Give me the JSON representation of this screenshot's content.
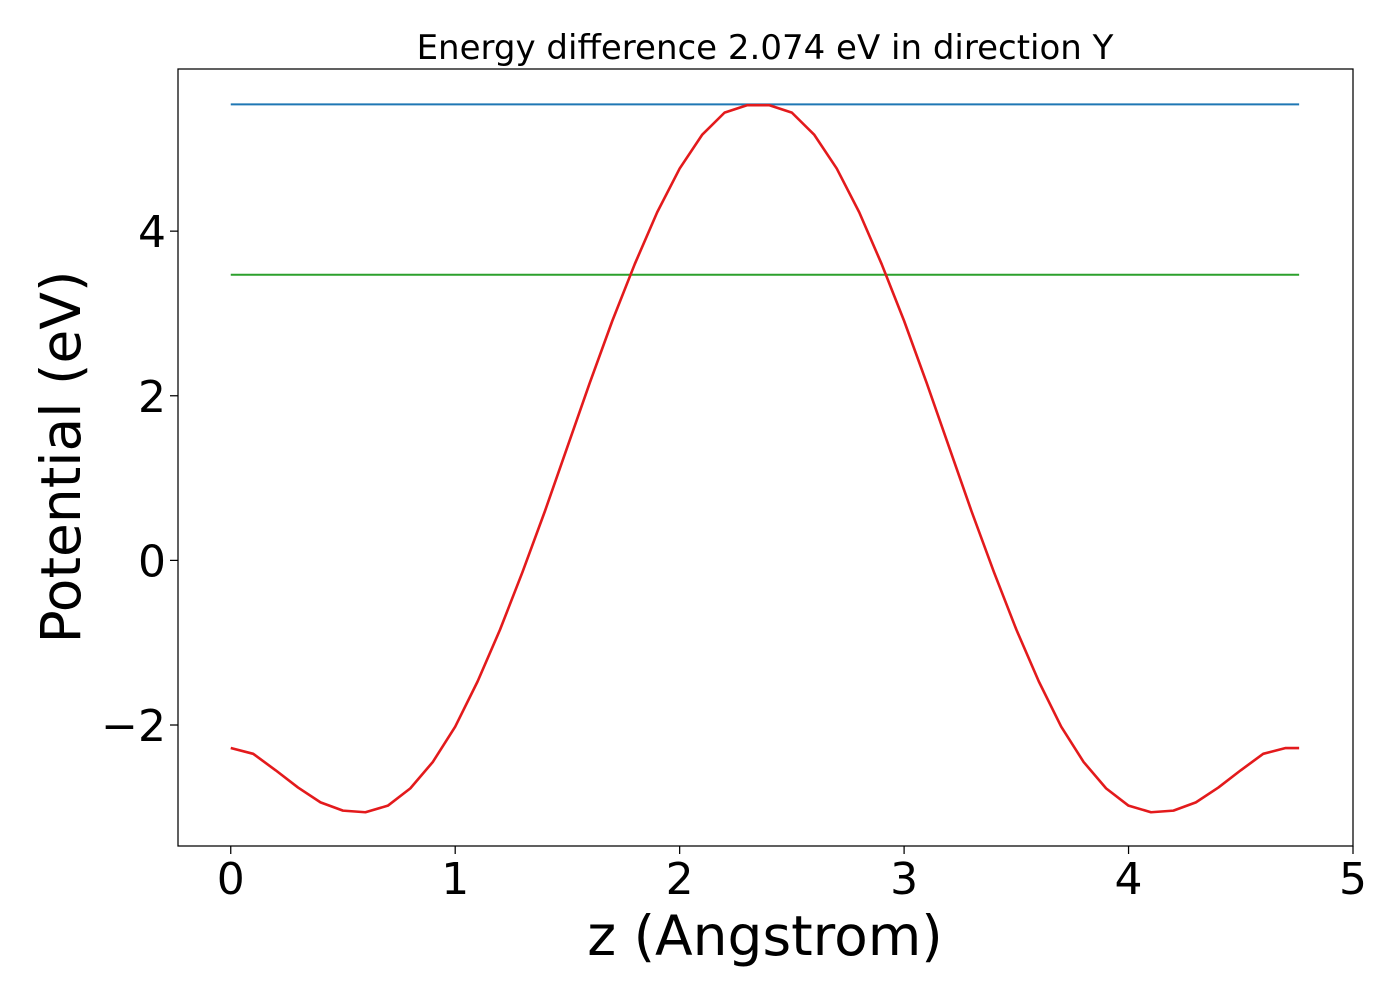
{
  "chart_data": {
    "type": "line",
    "title": "Energy difference 2.074 eV in direction Y",
    "xlabel": "z (Angstrom)",
    "ylabel": "Potential (eV)",
    "xlim": [
      -0.235,
      5.0
    ],
    "ylim": [
      -3.47,
      5.97
    ],
    "xticks": [
      0,
      1,
      2,
      3,
      4,
      5
    ],
    "xtick_labels": [
      "0",
      "1",
      "2",
      "3",
      "4",
      "5"
    ],
    "yticks": [
      -2,
      0,
      2,
      4
    ],
    "ytick_labels": [
      "−2",
      "0",
      "2",
      "4"
    ],
    "grid": false,
    "series": [
      {
        "color": "#1f77b4",
        "x": [
          0,
          4.76
        ],
        "y": [
          5.54,
          5.54
        ]
      },
      {
        "color": "#2ca02c",
        "x": [
          0,
          4.76
        ],
        "y": [
          3.47,
          3.47
        ]
      },
      {
        "color": "#e31a1c",
        "x": [
          0,
          0.1,
          0.2,
          0.3,
          0.4,
          0.5,
          0.6,
          0.7,
          0.8,
          0.9,
          1.0,
          1.1,
          1.2,
          1.3,
          1.4,
          1.5,
          1.6,
          1.7,
          1.8,
          1.9,
          2.0,
          2.1,
          2.2,
          2.3,
          2.4,
          2.5,
          2.6,
          2.7,
          2.8,
          2.9,
          3.0,
          3.1,
          3.2,
          3.3,
          3.4,
          3.5,
          3.6,
          3.7,
          3.8,
          3.9,
          4.0,
          4.1,
          4.2,
          4.3,
          4.4,
          4.5,
          4.6,
          4.7,
          4.76
        ],
        "y": [
          -2.28,
          -2.35,
          -2.55,
          -2.76,
          -2.94,
          -3.04,
          -3.06,
          -2.98,
          -2.77,
          -2.45,
          -2.02,
          -1.47,
          -0.84,
          -0.14,
          0.6,
          1.38,
          2.16,
          2.91,
          3.6,
          4.23,
          4.76,
          5.17,
          5.44,
          5.53,
          5.53,
          5.44,
          5.17,
          4.76,
          4.23,
          3.6,
          2.91,
          2.16,
          1.38,
          0.6,
          -0.14,
          -0.84,
          -1.47,
          -2.02,
          -2.45,
          -2.77,
          -2.98,
          -3.06,
          -3.04,
          -2.94,
          -2.76,
          -2.55,
          -2.35,
          -2.28,
          -2.28
        ]
      }
    ]
  }
}
